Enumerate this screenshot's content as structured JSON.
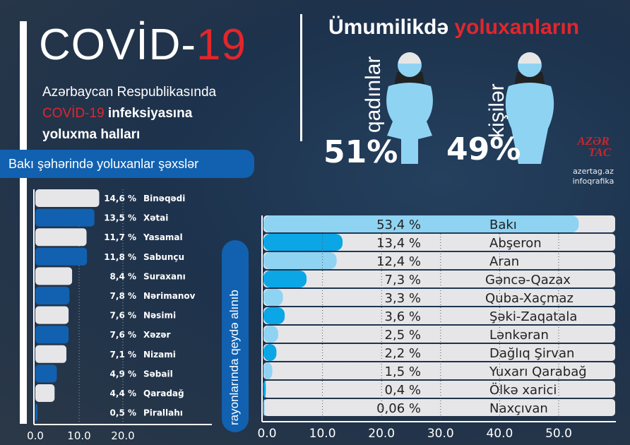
{
  "header": {
    "title_a": "COVİD-",
    "title_b": "19",
    "subtitle_line1": "Azərbaycan Respublikasında",
    "subtitle_line2_red": "COVİD-19",
    "subtitle_line2_bold": " infeksiyasına",
    "subtitle_line3": "yoluxma halları"
  },
  "baku_banner": "Bakı şəhərində yoluxanlar şəxslər",
  "gender": {
    "heading_a": "Ümumilikdə ",
    "heading_b": "yoluxanların",
    "women_label": "qadınlar",
    "women_pct": "51%",
    "women_value": 51,
    "men_label": "kişilər",
    "men_pct": "49%",
    "men_value": 49
  },
  "logo": {
    "text_a": "AZƏR",
    "text_b": "TAC",
    "site": "azertag.az",
    "caption": "infoqrafika"
  },
  "regions_label": "rayonlarında qeydə alınıb",
  "colors": {
    "red": "#e1262c",
    "blue": "#1161b0",
    "light_blue": "#8fd3f3",
    "cyan": "#0aa6e6",
    "track": "#e6e6e8"
  },
  "chart_data": [
    {
      "type": "bar",
      "orientation": "horizontal",
      "title": "Bakı şəhərində yoluxanlar şəxslər",
      "categories": [
        "Binəqədi",
        "Xətai",
        "Yasamal",
        "Sabunçu",
        "Suraxanı",
        "Nərimanov",
        "Nəsimi",
        "Xəzər",
        "Nizami",
        "Səbail",
        "Qaradağ",
        "Pirallahı"
      ],
      "values": [
        14.6,
        13.5,
        11.7,
        11.8,
        8.4,
        7.8,
        7.6,
        7.6,
        7.1,
        4.9,
        4.4,
        0.5
      ],
      "labels": [
        "14,6 %",
        "13,5 %",
        "11,7 %",
        "11,8 %",
        "8,4 %",
        "7,8 %",
        "7,6 %",
        "7,6 %",
        "7,1 %",
        "4,9 %",
        "4,4 %",
        "0,5 %"
      ],
      "xticks": [
        "0.0",
        "10.0",
        "20.0"
      ],
      "xlim": [
        0,
        20
      ],
      "grid": "vertical dotted"
    },
    {
      "type": "bar",
      "orientation": "horizontal",
      "title": "rayonlarında qeydə alınıb",
      "categories": [
        "Bakı",
        "Abşeron",
        "Aran",
        "Gəncə-Qazax",
        "Quba-Xaçmaz",
        "Şəki-Zaqatala",
        "Lənkəran",
        "Dağlıq Şirvan",
        "Yuxarı Qarabağ",
        "Ölkə xarici",
        "Naxçıvan"
      ],
      "values": [
        53.4,
        13.4,
        12.4,
        7.3,
        3.3,
        3.6,
        2.5,
        2.2,
        1.5,
        0.4,
        0.06
      ],
      "labels": [
        "53,4 %",
        "13,4 %",
        "12,4 %",
        "7,3 %",
        "3,3 %",
        "3,6 %",
        "2,5 %",
        "2,2 %",
        "1,5 %",
        "0,4 %",
        "0,06 %"
      ],
      "xticks": [
        "0.0",
        "10.0",
        "20.0",
        "30.0",
        "40.0",
        "50.0"
      ],
      "xlim": [
        0,
        55
      ],
      "grid": "vertical dotted"
    }
  ]
}
